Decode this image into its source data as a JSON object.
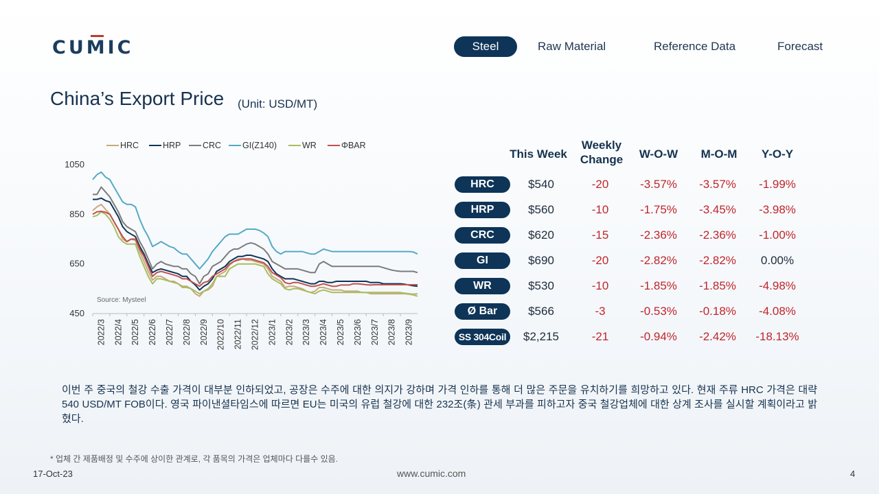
{
  "brand": {
    "logo_left": "CU",
    "logo_mid": "M",
    "logo_right": "IC"
  },
  "nav": {
    "steel": "Steel",
    "raw": "Raw Material",
    "reference": "Reference Data",
    "forecast": "Forecast"
  },
  "header": {
    "title": "China’s Export Price",
    "unit": "(Unit: USD/MT)"
  },
  "table": {
    "headers": {
      "this_week": "This Week",
      "weekly_change_1": "Weekly",
      "weekly_change_2": "Change",
      "wow": "W-O-W",
      "mom": "M-O-M",
      "yoy": "Y-O-Y"
    },
    "rows": [
      {
        "product": "HRC",
        "price": "$540",
        "change": "-20",
        "wow": "-3.57%",
        "mom": "-3.57%",
        "yoy": "-1.99%"
      },
      {
        "product": "HRP",
        "price": "$560",
        "change": "-10",
        "wow": "-1.75%",
        "mom": "-3.45%",
        "yoy": "-3.98%"
      },
      {
        "product": "CRC",
        "price": "$620",
        "change": "-15",
        "wow": "-2.36%",
        "mom": "-2.36%",
        "yoy": "-1.00%"
      },
      {
        "product": "GI",
        "price": "$690",
        "change": "-20",
        "wow": "-2.82%",
        "mom": "-2.82%",
        "yoy": "0.00%"
      },
      {
        "product": "WR",
        "price": "$530",
        "change": "-10",
        "wow": "-1.85%",
        "mom": "-1.85%",
        "yoy": "-4.98%"
      },
      {
        "product": "Ø Bar",
        "price": "$566",
        "change": "-3",
        "wow": "-0.53%",
        "mom": "-0.18%",
        "yoy": "-4.08%"
      },
      {
        "product": "SS 304Coil",
        "price": "$2,215",
        "change": "-21",
        "wow": "-0.94%",
        "mom": "-2.42%",
        "yoy": "-18.13%"
      }
    ]
  },
  "paragraph": "이번 주 중국의 철강 수출 가격이 대부분 인하되었고, 공장은 수주에 대한 의지가 강하며 가격 인하를 통해 더 많은 주문을 유치하기를 희망하고 있다. 현재 주류 HRC 가격은 대략 540 USD/MT FOB이다. 영국 파이낸셜타임스에 따르면 EU는 미국의 유럽 철강에 대한 232조(条) 관세 부과를 피하고자 중국 철강업체에 대한 상계 조사를 실시할 계획이라고 밝혔다.",
  "footnote": "* 업체 간 제품배정 및 수주에 상이한 관계로, 각 품목의 가격은 업체마다 다를수 있음.",
  "footer": {
    "date": "17-Oct-23",
    "url": "www.cumic.com",
    "page": "4"
  },
  "chart_data": {
    "type": "line",
    "title": "",
    "xlabel": "",
    "ylabel": "",
    "ylim": [
      450,
      1050
    ],
    "yticks": [
      450,
      650,
      850,
      1050
    ],
    "source": "Source: Mysteel",
    "legend_position": "top",
    "categories": [
      "2022/3",
      "2022/4",
      "2022/5",
      "2022/6",
      "2022/7",
      "2022/8",
      "2022/9",
      "2022/10",
      "2022/11",
      "2022/12",
      "2023/1",
      "2023/2",
      "2023/3",
      "2023/4",
      "2023/5",
      "2023/6",
      "2023/7",
      "2023/8",
      "2023/9"
    ],
    "x": [
      0,
      0.25,
      0.5,
      0.75,
      1,
      1.25,
      1.5,
      1.75,
      2,
      2.25,
      2.5,
      2.75,
      3,
      3.25,
      3.5,
      3.75,
      4,
      4.25,
      4.5,
      4.75,
      5,
      5.25,
      5.5,
      5.75,
      6,
      6.25,
      6.5,
      6.75,
      7,
      7.25,
      7.5,
      7.75,
      8,
      8.25,
      8.5,
      8.75,
      9,
      9.25,
      9.5,
      9.75,
      10,
      10.25,
      10.5,
      10.75,
      11,
      11.25,
      11.5,
      11.75,
      12,
      12.25,
      12.5,
      12.75,
      13,
      13.25,
      13.5,
      13.75,
      14,
      14.25,
      14.5,
      14.75,
      15,
      15.25,
      15.5,
      15.75,
      16,
      16.25,
      16.5,
      16.75,
      17,
      17.25,
      17.5,
      17.75,
      18,
      18.25,
      18.5,
      18.75,
      19
    ],
    "series": [
      {
        "name": "HRC",
        "color": "#c9a978",
        "values": [
          865,
          880,
          890,
          870,
          850,
          820,
          790,
          750,
          740,
          750,
          745,
          700,
          660,
          620,
          585,
          600,
          600,
          590,
          580,
          580,
          570,
          555,
          555,
          550,
          530,
          520,
          540,
          545,
          560,
          600,
          610,
          620,
          645,
          660,
          670,
          670,
          665,
          665,
          660,
          655,
          650,
          630,
          600,
          590,
          580,
          555,
          560,
          560,
          555,
          550,
          540,
          535,
          540,
          555,
          555,
          550,
          545,
          545,
          545,
          540,
          540,
          540,
          540,
          535,
          535,
          530,
          530,
          530,
          530,
          530,
          530,
          530,
          530,
          530,
          528,
          525,
          520
        ]
      },
      {
        "name": "HRP",
        "color": "#0e3457",
        "values": [
          910,
          910,
          915,
          905,
          900,
          870,
          840,
          800,
          780,
          770,
          760,
          720,
          690,
          650,
          615,
          625,
          630,
          625,
          620,
          615,
          610,
          600,
          600,
          580,
          565,
          545,
          560,
          570,
          590,
          620,
          630,
          640,
          660,
          670,
          680,
          680,
          685,
          685,
          680,
          675,
          670,
          660,
          630,
          610,
          600,
          590,
          590,
          590,
          585,
          580,
          575,
          570,
          570,
          580,
          580,
          575,
          575,
          580,
          580,
          580,
          580,
          580,
          580,
          580,
          580,
          575,
          575,
          575,
          570,
          570,
          570,
          570,
          570,
          568,
          565,
          562,
          560
        ]
      },
      {
        "name": "CRC",
        "color": "#7b7b7b",
        "values": [
          930,
          930,
          960,
          940,
          920,
          890,
          860,
          820,
          800,
          790,
          780,
          740,
          710,
          670,
          630,
          650,
          660,
          650,
          645,
          640,
          640,
          630,
          630,
          610,
          600,
          570,
          600,
          610,
          640,
          650,
          660,
          680,
          700,
          710,
          710,
          720,
          730,
          735,
          730,
          720,
          710,
          690,
          660,
          650,
          640,
          630,
          630,
          630,
          630,
          625,
          620,
          615,
          615,
          650,
          660,
          650,
          640,
          640,
          640,
          640,
          640,
          640,
          640,
          640,
          640,
          640,
          640,
          640,
          635,
          630,
          625,
          622,
          620,
          620,
          620,
          620,
          615
        ]
      },
      {
        "name": "GI(Z140)",
        "color": "#55a9c6",
        "values": [
          990,
          1010,
          1020,
          1000,
          990,
          960,
          930,
          900,
          890,
          890,
          880,
          830,
          790,
          760,
          720,
          730,
          740,
          730,
          720,
          715,
          700,
          690,
          690,
          670,
          650,
          630,
          650,
          670,
          700,
          720,
          740,
          760,
          770,
          770,
          770,
          780,
          790,
          790,
          790,
          785,
          775,
          760,
          720,
          700,
          690,
          700,
          700,
          700,
          700,
          700,
          695,
          690,
          690,
          700,
          710,
          705,
          700,
          700,
          700,
          700,
          700,
          700,
          700,
          700,
          700,
          700,
          700,
          700,
          700,
          700,
          700,
          700,
          700,
          700,
          700,
          698,
          690
        ]
      },
      {
        "name": "WR",
        "color": "#a7bd5f",
        "values": [
          840,
          845,
          860,
          850,
          830,
          800,
          760,
          740,
          730,
          730,
          730,
          680,
          640,
          600,
          570,
          590,
          590,
          585,
          580,
          575,
          570,
          560,
          560,
          550,
          540,
          530,
          540,
          550,
          570,
          600,
          600,
          600,
          630,
          640,
          650,
          650,
          650,
          650,
          650,
          645,
          640,
          610,
          590,
          580,
          570,
          550,
          545,
          550,
          550,
          545,
          540,
          535,
          530,
          540,
          545,
          540,
          535,
          535,
          535,
          535,
          535,
          535,
          535,
          535,
          535,
          535,
          535,
          535,
          535,
          535,
          535,
          535,
          535,
          532,
          530,
          528,
          530
        ]
      },
      {
        "name": "ΦBAR",
        "color": "#c0504d",
        "values": [
          850,
          860,
          862,
          858,
          850,
          820,
          790,
          760,
          740,
          750,
          750,
          710,
          680,
          640,
          600,
          615,
          620,
          615,
          610,
          605,
          600,
          590,
          590,
          580,
          570,
          560,
          575,
          580,
          600,
          610,
          620,
          630,
          650,
          660,
          665,
          670,
          670,
          670,
          665,
          660,
          655,
          640,
          615,
          605,
          595,
          575,
          570,
          575,
          575,
          570,
          565,
          560,
          560,
          565,
          570,
          565,
          560,
          560,
          565,
          565,
          565,
          570,
          570,
          568,
          566,
          565,
          566,
          566,
          566,
          566,
          566,
          566,
          566,
          566,
          566,
          566,
          566
        ]
      }
    ]
  }
}
